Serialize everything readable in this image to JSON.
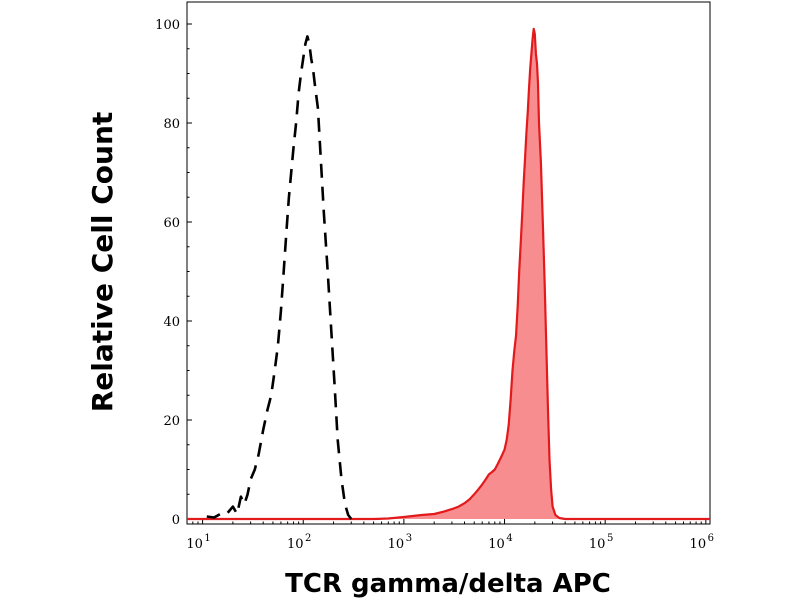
{
  "chart_data": {
    "type": "area",
    "title": "",
    "xlabel": "TCR gamma/delta APC",
    "ylabel": "Relative Cell Count",
    "xscale": "log",
    "xlim": [
      7,
      1100000
    ],
    "ylim": [
      0,
      102
    ],
    "y_ticks": [
      0,
      20,
      40,
      60,
      80,
      100
    ],
    "x_ticks": [
      {
        "base": "10",
        "exp": "1",
        "value": 10
      },
      {
        "base": "10",
        "exp": "2",
        "value": 100
      },
      {
        "base": "10",
        "exp": "3",
        "value": 1000
      },
      {
        "base": "10",
        "exp": "4",
        "value": 10000
      },
      {
        "base": "10",
        "exp": "5",
        "value": 100000
      },
      {
        "base": "10",
        "exp": "6",
        "value": 1000000
      }
    ],
    "grid": false,
    "legend": "none",
    "series": [
      {
        "style": "dashed",
        "color": "#000000",
        "fill": "none",
        "points": [
          [
            11,
            0.5
          ],
          [
            13,
            0.3
          ],
          [
            15,
            1.0
          ],
          [
            17,
            0.8
          ],
          [
            20,
            2.5
          ],
          [
            22,
            1.0
          ],
          [
            24,
            4.5
          ],
          [
            26,
            3.0
          ],
          [
            28,
            5.0
          ],
          [
            30,
            8.0
          ],
          [
            33,
            10.0
          ],
          [
            36,
            13.0
          ],
          [
            40,
            18.0
          ],
          [
            44,
            22.0
          ],
          [
            48,
            25.0
          ],
          [
            52,
            30.0
          ],
          [
            56,
            35.0
          ],
          [
            60,
            42.0
          ],
          [
            64,
            50.0
          ],
          [
            68,
            58.0
          ],
          [
            72,
            65.0
          ],
          [
            76,
            70.0
          ],
          [
            80,
            75.0
          ],
          [
            85,
            80.0
          ],
          [
            90,
            86.0
          ],
          [
            95,
            90.0
          ],
          [
            100,
            93.0
          ],
          [
            105,
            96.0
          ],
          [
            110,
            97.5
          ],
          [
            115,
            96.0
          ],
          [
            120,
            93.0
          ],
          [
            125,
            91.0
          ],
          [
            130,
            88.0
          ],
          [
            140,
            83.0
          ],
          [
            150,
            72.0
          ],
          [
            160,
            62.0
          ],
          [
            175,
            50.0
          ],
          [
            190,
            38.0
          ],
          [
            205,
            27.0
          ],
          [
            220,
            16.0
          ],
          [
            240,
            8.0
          ],
          [
            260,
            3.0
          ],
          [
            280,
            0.8
          ],
          [
            300,
            0.0
          ]
        ]
      },
      {
        "style": "solid",
        "color": "#e31a1c",
        "fill": "#f78d8f",
        "points": [
          [
            7,
            0.0
          ],
          [
            500,
            0.0
          ],
          [
            700,
            0.1
          ],
          [
            1000,
            0.4
          ],
          [
            1500,
            0.8
          ],
          [
            2000,
            1.0
          ],
          [
            2500,
            1.5
          ],
          [
            3000,
            2.0
          ],
          [
            3500,
            2.5
          ],
          [
            4000,
            3.2
          ],
          [
            4500,
            4.0
          ],
          [
            5000,
            5.0
          ],
          [
            5500,
            6.0
          ],
          [
            6000,
            7.0
          ],
          [
            6500,
            8.0
          ],
          [
            7000,
            9.0
          ],
          [
            7500,
            9.5
          ],
          [
            8000,
            10.0
          ],
          [
            8500,
            11.0
          ],
          [
            9000,
            12.0
          ],
          [
            9500,
            13.0
          ],
          [
            10000,
            14.0
          ],
          [
            10500,
            16.0
          ],
          [
            11000,
            19.0
          ],
          [
            11500,
            24.0
          ],
          [
            12000,
            30.0
          ],
          [
            12500,
            34.0
          ],
          [
            13000,
            37.0
          ],
          [
            13500,
            43.0
          ],
          [
            14000,
            50.0
          ],
          [
            14500,
            56.0
          ],
          [
            15000,
            62.0
          ],
          [
            15500,
            68.0
          ],
          [
            16000,
            73.0
          ],
          [
            16500,
            78.0
          ],
          [
            17000,
            82.0
          ],
          [
            17500,
            87.0
          ],
          [
            18000,
            91.0
          ],
          [
            18500,
            94.0
          ],
          [
            19000,
            97.0
          ],
          [
            19500,
            99.0
          ],
          [
            20000,
            98.0
          ],
          [
            20500,
            94.0
          ],
          [
            21000,
            92.0
          ],
          [
            21500,
            88.0
          ],
          [
            22000,
            80.0
          ],
          [
            23000,
            72.0
          ],
          [
            24000,
            60.0
          ],
          [
            25000,
            48.0
          ],
          [
            26000,
            35.0
          ],
          [
            27000,
            22.0
          ],
          [
            28000,
            12.0
          ],
          [
            29000,
            6.0
          ],
          [
            30000,
            2.5
          ],
          [
            32000,
            0.8
          ],
          [
            35000,
            0.2
          ],
          [
            40000,
            0.0
          ],
          [
            1100000,
            0.0
          ]
        ]
      }
    ]
  }
}
